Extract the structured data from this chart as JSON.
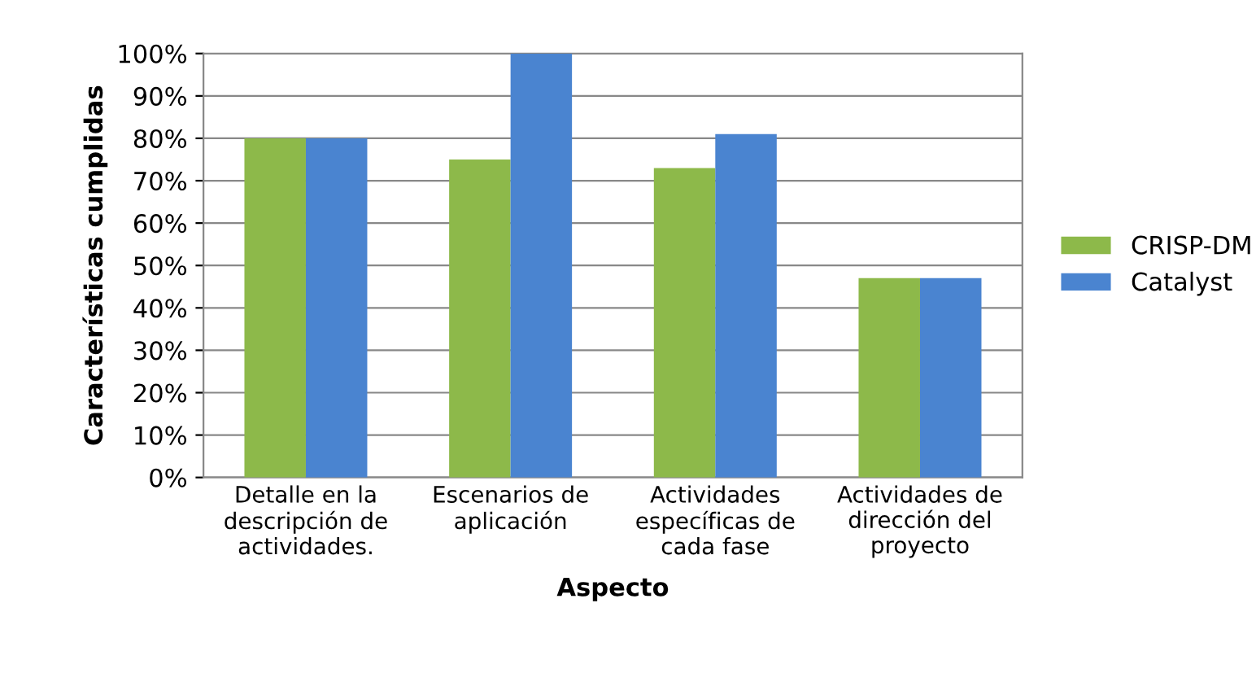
{
  "chart_data": {
    "type": "bar",
    "xlabel": "Aspecto",
    "ylabel": "Características cumplidas",
    "categories": [
      "Detalle en la\ndescripción de\nactividades.",
      "Escenarios de\naplicación",
      "Actividades\nespecíficas de\ncada fase",
      "Actividades de\ndirección del\nproyecto"
    ],
    "series": [
      {
        "name": "CRISP-DM",
        "color": "#8db94a",
        "values": [
          80,
          75,
          73,
          47
        ]
      },
      {
        "name": "Catalyst",
        "color": "#4a84d0",
        "values": [
          80,
          100,
          81,
          47
        ]
      }
    ],
    "ylim": [
      0,
      100
    ],
    "yticks": [
      {
        "value": 0,
        "label": "0%"
      },
      {
        "value": 10,
        "label": "10%"
      },
      {
        "value": 20,
        "label": "20%"
      },
      {
        "value": 30,
        "label": "30%"
      },
      {
        "value": 40,
        "label": "40%"
      },
      {
        "value": 50,
        "label": "50%"
      },
      {
        "value": 60,
        "label": "60%"
      },
      {
        "value": 70,
        "label": "70%"
      },
      {
        "value": 80,
        "label": "80%"
      },
      {
        "value": 90,
        "label": "90%"
      },
      {
        "value": 100,
        "label": "100%"
      }
    ],
    "grid": "y",
    "legend": "right"
  }
}
